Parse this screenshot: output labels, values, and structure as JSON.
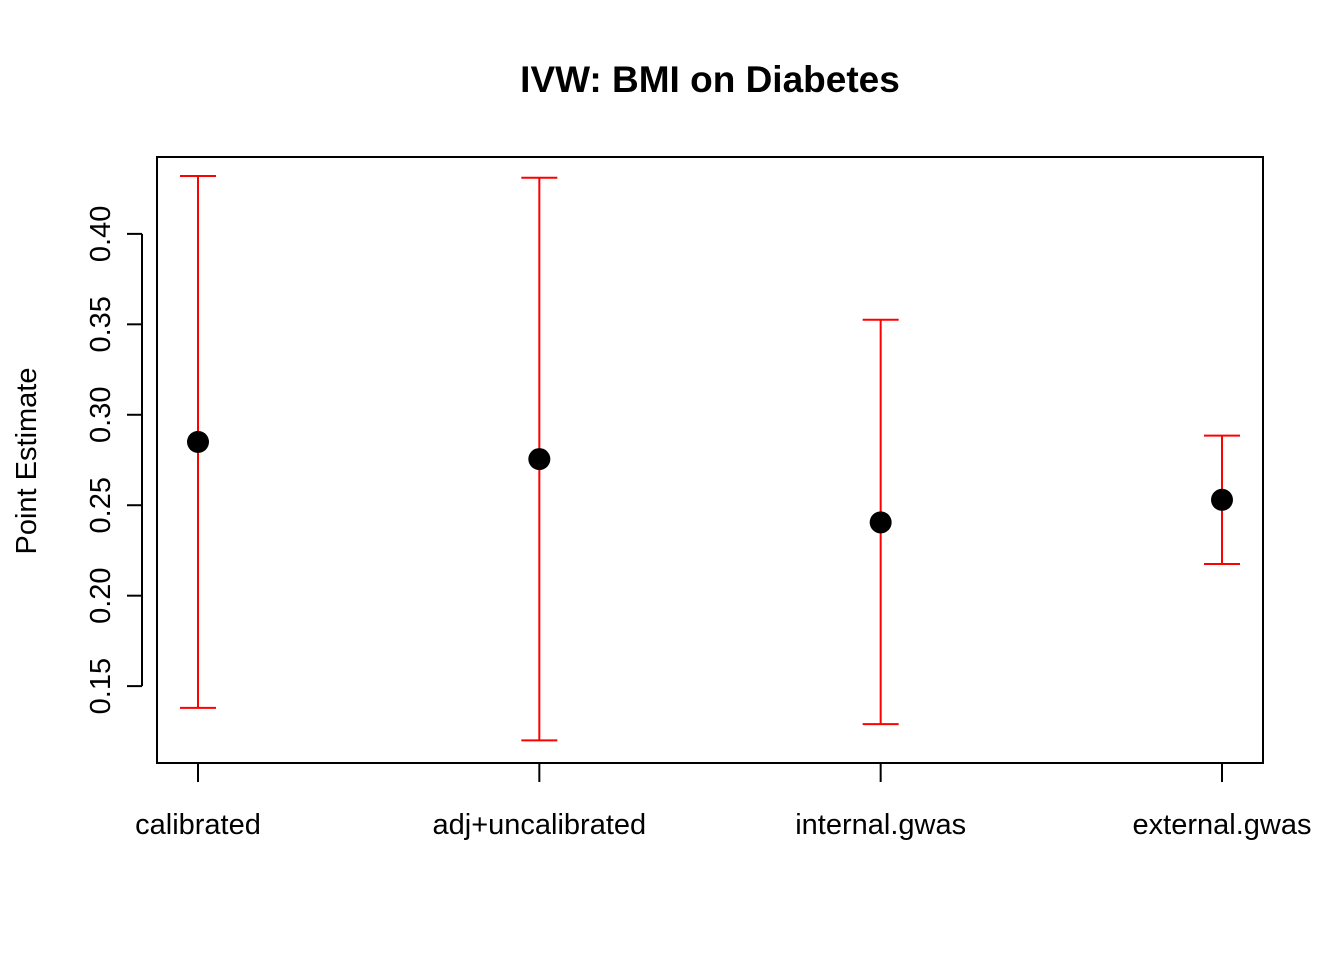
{
  "chart_data": {
    "type": "scatter",
    "title": "IVW: BMI on Diabetes",
    "xlabel": "",
    "ylabel": "Point Estimate",
    "categories": [
      "calibrated",
      "adj+uncalibrated",
      "internal.gwas",
      "external.gwas"
    ],
    "series": [
      {
        "values": [
          0.285,
          0.2755,
          0.2405,
          0.253
        ],
        "lower": [
          0.138,
          0.12,
          0.129,
          0.2175
        ],
        "upper": [
          0.432,
          0.431,
          0.3525,
          0.2885
        ]
      }
    ],
    "yticks": [
      0.15,
      0.2,
      0.25,
      0.3,
      0.35,
      0.4
    ],
    "ytick_labels": [
      "0.15",
      "0.20",
      "0.25",
      "0.30",
      "0.35",
      "0.40"
    ],
    "ylim": [
      0.1075,
      0.4425
    ],
    "grid": false,
    "colors": {
      "point": "#000000",
      "error_bar": "#ff0000",
      "axis": "#000000"
    }
  }
}
